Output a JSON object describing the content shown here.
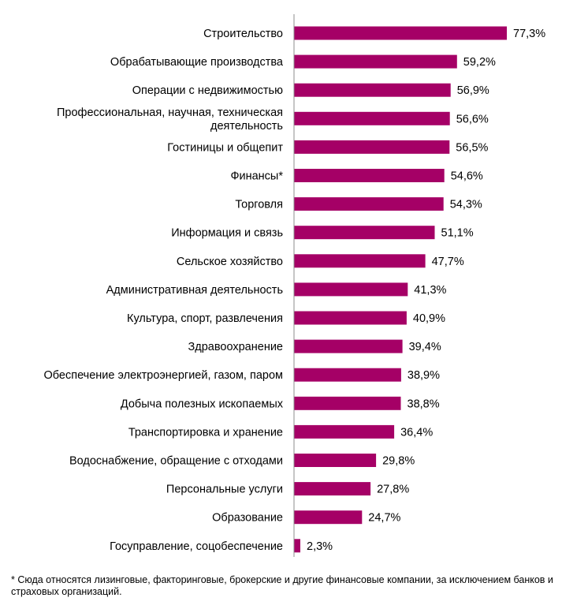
{
  "chart_data": {
    "type": "bar",
    "orientation": "horizontal",
    "categories": [
      "Строительство",
      "Обрабатывающие производства",
      "Операции с недвижимостью",
      "Профессиональная, научная, техническая деятельность",
      "Гостиницы и общепит",
      "Финансы*",
      "Торговля",
      "Информация и связь",
      "Сельское хозяйство",
      "Административная деятельность",
      "Культура, спорт, развлечения",
      "Здравоохранение",
      "Обеспечение электроэнергией, газом, паром",
      "Добыча полезных ископаемых",
      "Транспортировка и хранение",
      "Водоснабжение, обращение с отходами",
      "Персональные услуги",
      "Образование",
      "Госуправление, соцобеспечение"
    ],
    "category_lines": [
      [
        "Строительство"
      ],
      [
        "Обрабатывающие производства"
      ],
      [
        "Операции с недвижимостью"
      ],
      [
        "Профессиональная, научная, техническая",
        "деятельность"
      ],
      [
        "Гостиницы и общепит"
      ],
      [
        "Финансы*"
      ],
      [
        "Торговля"
      ],
      [
        "Информация и связь"
      ],
      [
        "Сельское хозяйство"
      ],
      [
        "Административная деятельность"
      ],
      [
        "Культура, спорт, развлечения"
      ],
      [
        "Здравоохранение"
      ],
      [
        "Обеспечение электроэнергией, газом, паром"
      ],
      [
        "Добыча полезных ископаемых"
      ],
      [
        "Транспортировка и хранение"
      ],
      [
        "Водоснабжение, обращение с отходами"
      ],
      [
        "Персональные услуги"
      ],
      [
        "Образование"
      ],
      [
        "Госуправление, соцобеспечение"
      ]
    ],
    "values": [
      77.3,
      59.2,
      56.9,
      56.6,
      56.5,
      54.6,
      54.3,
      51.1,
      47.7,
      41.3,
      40.9,
      39.4,
      38.9,
      38.8,
      36.4,
      29.8,
      27.8,
      24.7,
      2.3
    ],
    "value_labels": [
      "77,3%",
      "59,2%",
      "56,9%",
      "56,6%",
      "56,5%",
      "54,6%",
      "54,3%",
      "51,1%",
      "47,7%",
      "41,3%",
      "40,9%",
      "39,4%",
      "38,9%",
      "38,8%",
      "36,4%",
      "29,8%",
      "27,8%",
      "24,7%",
      "2,3%"
    ],
    "xlim": [
      0,
      77.3
    ],
    "bar_color": "#a50066",
    "axis_color": "#8c8c8c",
    "grid": false,
    "legend": "none"
  },
  "footnote": "* Сюда относятся лизинговые, факторинговые, брокерские и другие финансовые компании, за исключением банков и страховых организаций."
}
